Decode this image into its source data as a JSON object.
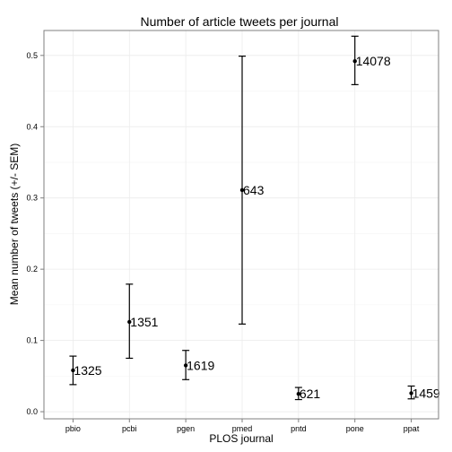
{
  "chart_data": {
    "type": "scatter",
    "title": "Number of article tweets per journal",
    "xlabel": "PLOS journal",
    "ylabel": "Mean number of tweets (+/- SEM)",
    "categories": [
      "pbio",
      "pcbi",
      "pgen",
      "pmed",
      "pntd",
      "pone",
      "ppat"
    ],
    "ylim": [
      -0.01,
      0.535
    ],
    "yticks": [
      0.0,
      0.1,
      0.2,
      0.3,
      0.4,
      0.5
    ],
    "ytick_labels": [
      "0.0",
      "0.1",
      "0.2",
      "0.3",
      "0.4",
      "0.5"
    ],
    "grid": true,
    "legend": "none",
    "series": [
      {
        "mean": [
          0.058,
          0.126,
          0.065,
          0.311,
          0.025,
          0.492,
          0.026
        ],
        "lower": [
          0.038,
          0.075,
          0.045,
          0.123,
          0.017,
          0.459,
          0.018
        ],
        "upper": [
          0.078,
          0.179,
          0.086,
          0.499,
          0.034,
          0.527,
          0.036
        ],
        "labels": [
          "1325",
          "1351",
          "1619",
          "643",
          "621",
          "14078",
          "1459"
        ]
      }
    ]
  }
}
